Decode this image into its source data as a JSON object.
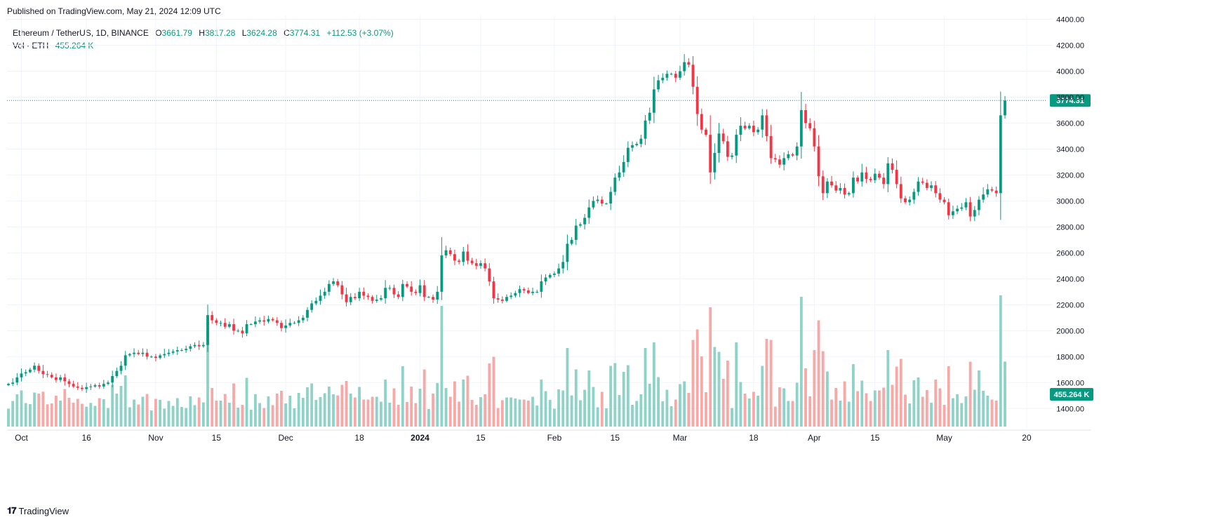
{
  "published": "Published on TradingView.com, May 21, 2024 12:09 UTC",
  "legend": {
    "symbol": "Ethereum / TetherUS, 1D, BINANCE",
    "open_label": "O",
    "open": "3661.79",
    "high_label": "H",
    "high": "3817.28",
    "low_label": "L",
    "low": "3624.28",
    "close_label": "C",
    "close": "3774.31",
    "change": "+112.53 (+3.07%)",
    "vol_label": "Vol · ETH",
    "vol_value": "455.264 K"
  },
  "footer": {
    "logo_icon": "tradingview-logo-icon",
    "brand": "TradingView"
  },
  "colors": {
    "up": "#089981",
    "down": "#f23645",
    "vol_up": "#8fd3c8",
    "vol_down": "#f7a9a7",
    "grid": "#f0f3fa"
  },
  "chart_data": {
    "type": "candlestick",
    "price_axis_ticks": [
      "4400.00",
      "4200.00",
      "4000.00",
      "3800.00",
      "3600.00",
      "3400.00",
      "3200.00",
      "3000.00",
      "2800.00",
      "2600.00",
      "2400.00",
      "2200.00",
      "2000.00",
      "1800.00",
      "1600.00",
      "1400.00"
    ],
    "ylim": [
      1250,
      4430
    ],
    "last_price_label": "3774.31",
    "volume_label": "455.264 K",
    "time_axis_labels": [
      {
        "label": "Oct",
        "bar": 3
      },
      {
        "label": "16",
        "bar": 18
      },
      {
        "label": "Nov",
        "bar": 34
      },
      {
        "label": "15",
        "bar": 48
      },
      {
        "label": "Dec",
        "bar": 64
      },
      {
        "label": "18",
        "bar": 81
      },
      {
        "label": "2024",
        "bar": 95,
        "bold": true
      },
      {
        "label": "15",
        "bar": 109
      },
      {
        "label": "Feb",
        "bar": 126
      },
      {
        "label": "15",
        "bar": 140
      },
      {
        "label": "Mar",
        "bar": 155
      },
      {
        "label": "18",
        "bar": 172
      },
      {
        "label": "Apr",
        "bar": 186
      },
      {
        "label": "15",
        "bar": 200
      },
      {
        "label": "May",
        "bar": 216
      },
      {
        "label": "20",
        "bar": 235
      }
    ],
    "closes": [
      1590,
      1600,
      1640,
      1670,
      1680,
      1700,
      1730,
      1690,
      1665,
      1660,
      1640,
      1620,
      1640,
      1610,
      1590,
      1570,
      1560,
      1550,
      1565,
      1570,
      1580,
      1570,
      1590,
      1600,
      1650,
      1690,
      1730,
      1810,
      1820,
      1830,
      1820,
      1830,
      1800,
      1800,
      1790,
      1810,
      1820,
      1830,
      1840,
      1850,
      1850,
      1860,
      1880,
      1890,
      1880,
      1890,
      2120,
      2080,
      2060,
      2060,
      2030,
      2050,
      2000,
      2000,
      1980,
      2050,
      2050,
      2070,
      2080,
      2070,
      2090,
      2080,
      2060,
      2020,
      2040,
      2060,
      2060,
      2080,
      2100,
      2160,
      2210,
      2230,
      2270,
      2300,
      2360,
      2380,
      2350,
      2280,
      2220,
      2260,
      2250,
      2300,
      2270,
      2260,
      2230,
      2240,
      2250,
      2330,
      2330,
      2280,
      2260,
      2360,
      2340,
      2300,
      2290,
      2350,
      2260,
      2260,
      2240,
      2300,
      2580,
      2620,
      2590,
      2540,
      2530,
      2610,
      2540,
      2520,
      2500,
      2520,
      2480,
      2380,
      2250,
      2240,
      2230,
      2260,
      2270,
      2290,
      2320,
      2310,
      2290,
      2300,
      2300,
      2380,
      2410,
      2430,
      2440,
      2480,
      2530,
      2670,
      2700,
      2810,
      2820,
      2870,
      2950,
      3000,
      3010,
      2980,
      2980,
      3070,
      3180,
      3220,
      3300,
      3410,
      3430,
      3440,
      3480,
      3620,
      3680,
      3860,
      3930,
      3950,
      3980,
      3980,
      3950,
      4000,
      4070,
      4050,
      3880,
      3670,
      3550,
      3510,
      3220,
      3370,
      3520,
      3460,
      3340,
      3350,
      3510,
      3580,
      3560,
      3580,
      3530,
      3550,
      3660,
      3500,
      3330,
      3320,
      3280,
      3330,
      3360,
      3350,
      3420,
      3700,
      3600,
      3560,
      3420,
      3190,
      3060,
      3150,
      3120,
      3080,
      3100,
      3050,
      3060,
      3180,
      3150,
      3220,
      3170,
      3160,
      3210,
      3180,
      3130,
      3290,
      3240,
      3130,
      3020,
      2990,
      3010,
      3070,
      3150,
      3140,
      3100,
      3120,
      3060,
      3010,
      2990,
      2890,
      2920,
      2940,
      2950,
      2990,
      2880,
      2930,
      3010,
      3050,
      3090,
      3080,
      3060,
      3660,
      3774
    ]
  }
}
